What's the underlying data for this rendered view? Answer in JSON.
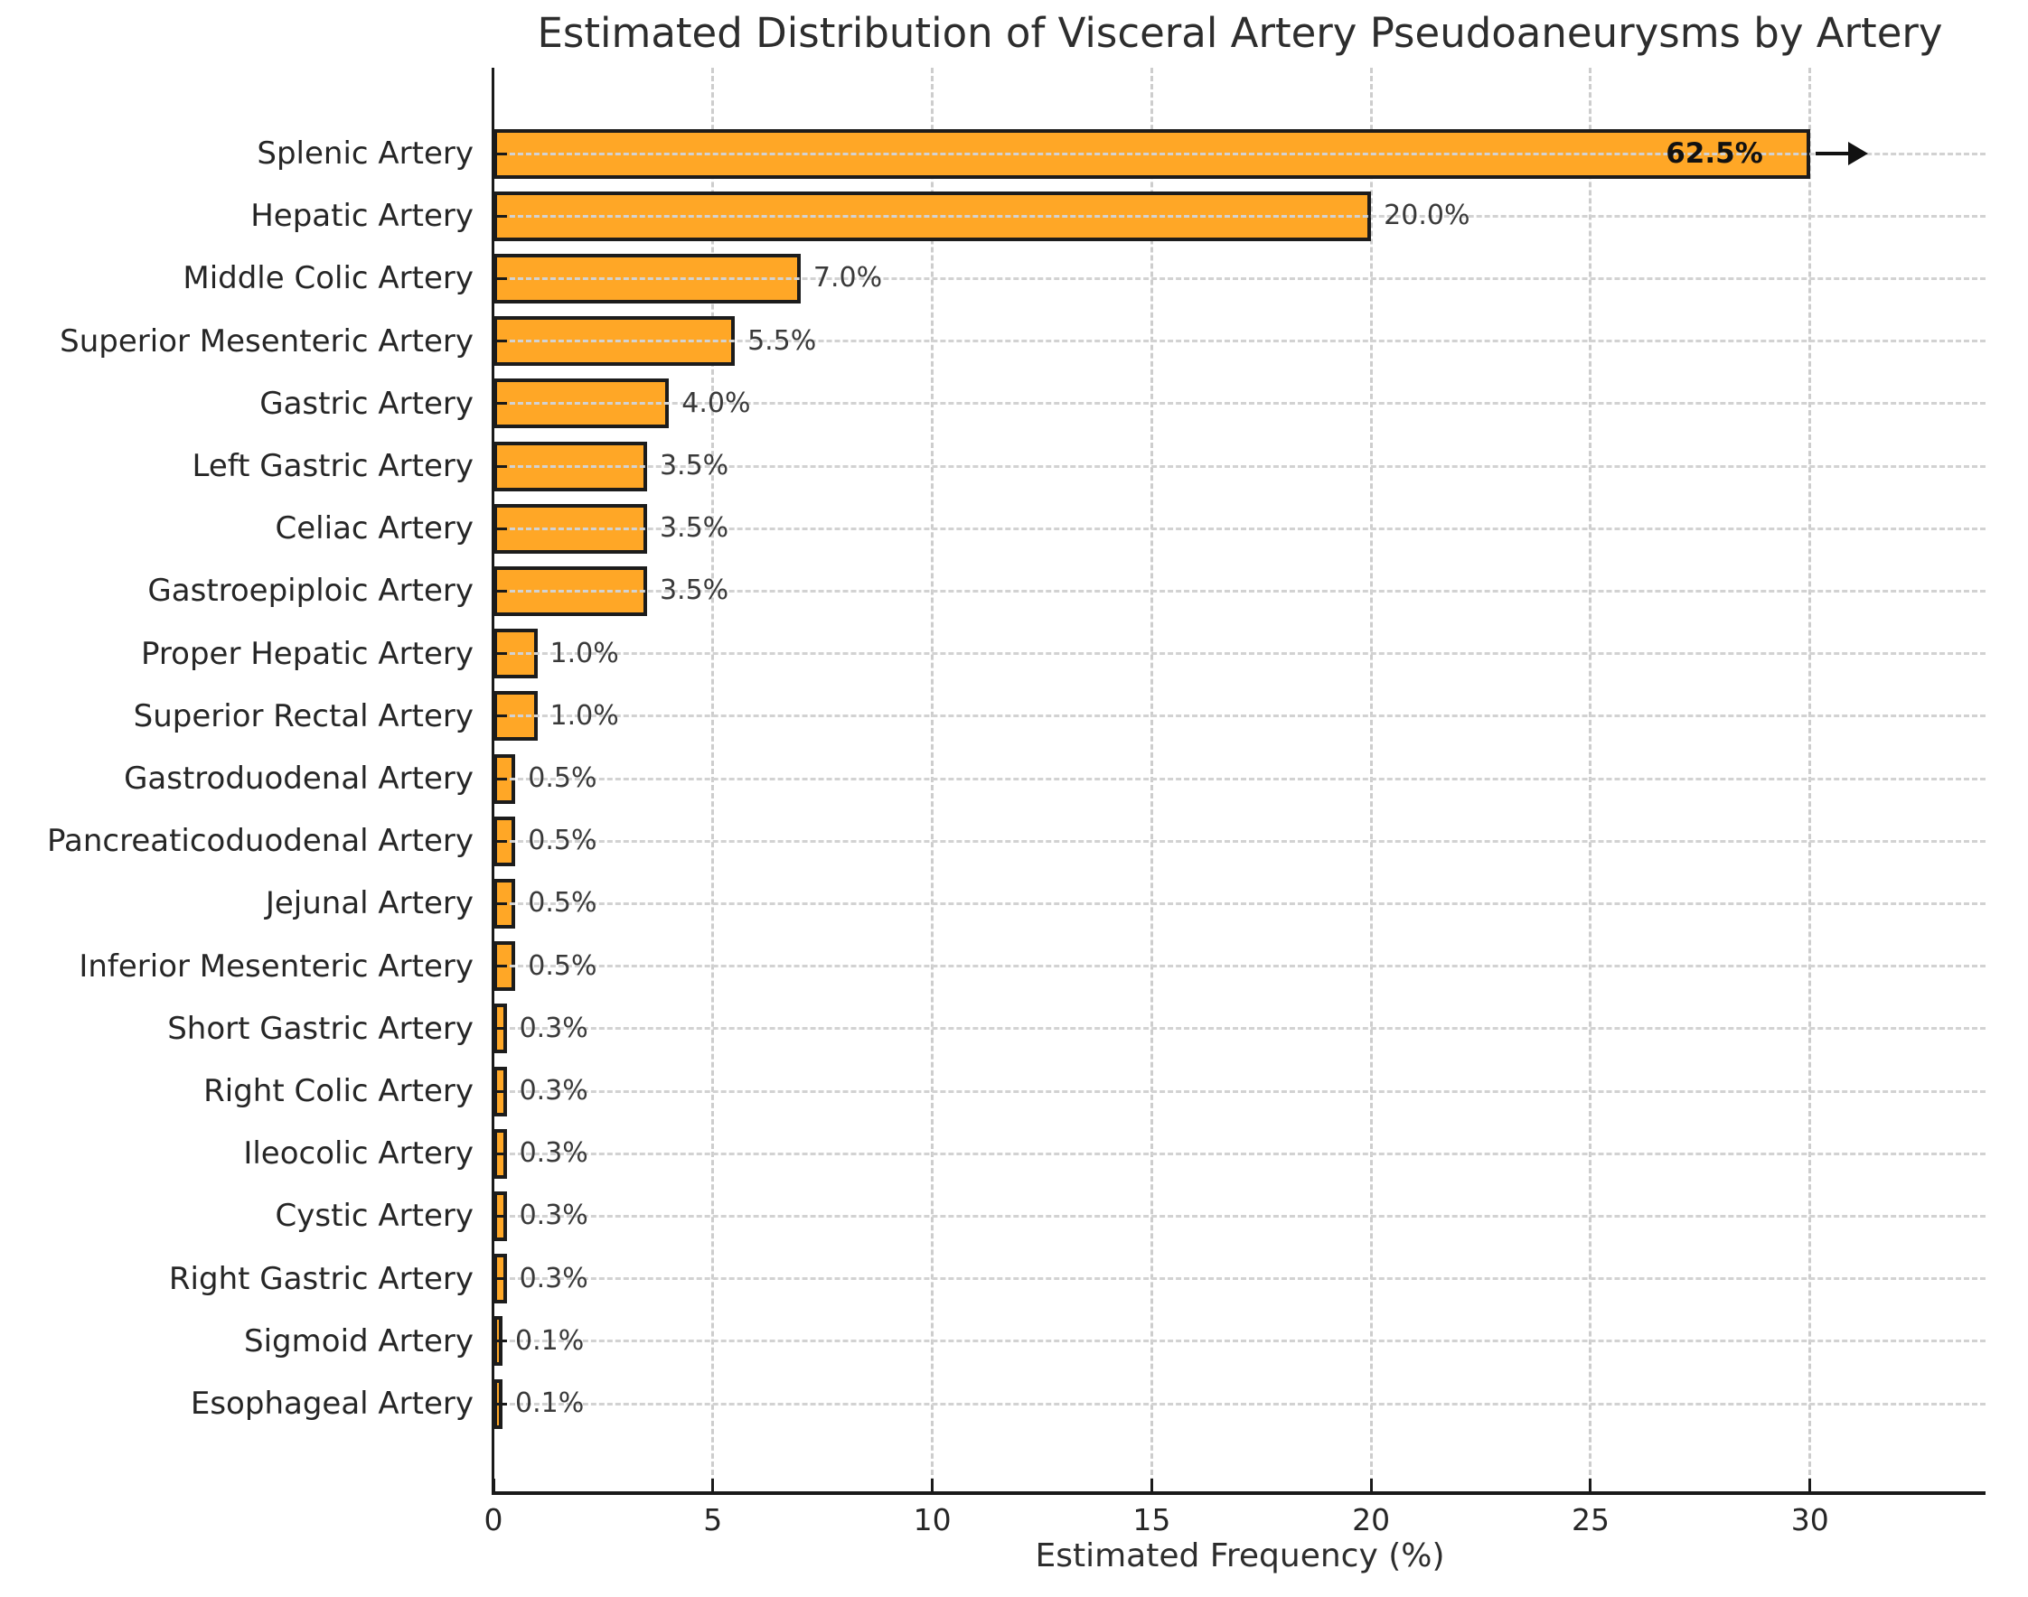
{
  "chart_data": {
    "type": "bar",
    "orientation": "horizontal",
    "title": "Estimated Distribution of Visceral Artery Pseudoaneurysms by Artery",
    "xlabel": "Estimated Frequency (%)",
    "ylabel": "",
    "categories": [
      "Splenic Artery",
      "Hepatic Artery",
      "Middle Colic Artery",
      "Superior Mesenteric Artery",
      "Gastric Artery",
      "Left Gastric Artery",
      "Celiac Artery",
      "Gastroepiploic Artery",
      "Proper Hepatic Artery",
      "Superior Rectal Artery",
      "Gastroduodenal Artery",
      "Pancreaticoduodenal Artery",
      "Jejunal Artery",
      "Inferior Mesenteric Artery",
      "Short Gastric Artery",
      "Right Colic Artery",
      "Ileocolic Artery",
      "Cystic Artery",
      "Right Gastric Artery",
      "Sigmoid Artery",
      "Esophageal Artery"
    ],
    "values": [
      62.5,
      20.0,
      7.0,
      5.5,
      4.0,
      3.5,
      3.5,
      3.5,
      1.0,
      1.0,
      0.5,
      0.5,
      0.5,
      0.5,
      0.3,
      0.3,
      0.3,
      0.3,
      0.3,
      0.1,
      0.1
    ],
    "value_labels": [
      "62.5%",
      "20.0%",
      "7.0%",
      "5.5%",
      "4.0%",
      "3.5%",
      "3.5%",
      "3.5%",
      "1.0%",
      "1.0%",
      "0.5%",
      "0.5%",
      "0.5%",
      "0.5%",
      "0.3%",
      "0.3%",
      "0.3%",
      "0.3%",
      "0.3%",
      "0.1%",
      "0.1%"
    ],
    "x_ticks": [
      0,
      5,
      10,
      15,
      20,
      25,
      30
    ],
    "xlim": [
      0,
      34
    ],
    "grid": true,
    "legend": null,
    "bar_clip_value": 30,
    "truncated_category": "Splenic Artery",
    "truncation_marker": "right-arrow"
  },
  "colors": {
    "bar_fill": "#FFA726",
    "bar_edge": "#1C1C1C",
    "grid": "#CDCDCD",
    "axis": "#1A1A1A",
    "title_text": "#2D2D2D",
    "label_text": "#262626",
    "value_text": "#3A3A3A",
    "background": "#FFFFFF"
  }
}
